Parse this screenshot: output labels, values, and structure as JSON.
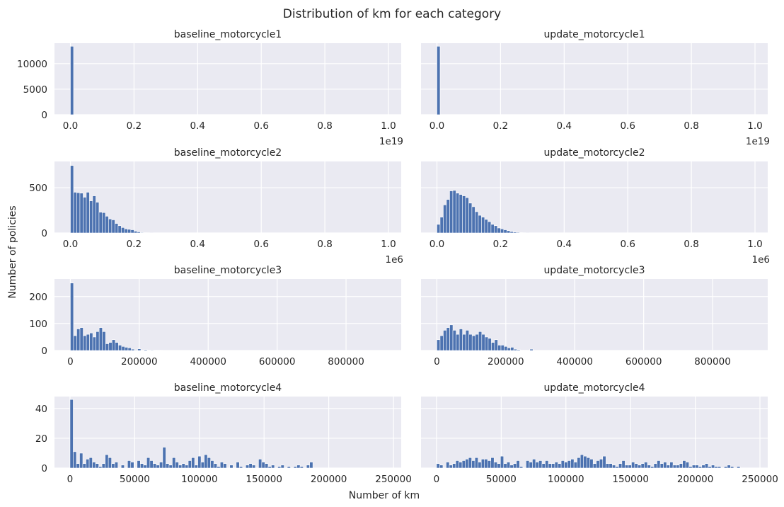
{
  "figure": {
    "title": "Distribution of km for each category",
    "xlabel": "Number of km",
    "ylabel": "Number of policies",
    "bar_color": "#4c72b0",
    "panel_bg": "#eaeaf2"
  },
  "chart_data": [
    {
      "type": "bar",
      "title": "baseline_motorcycle1",
      "xlim": [
        -0.05,
        1.04
      ],
      "xticks": [
        0,
        0.2,
        0.4,
        0.6,
        0.8,
        1.0
      ],
      "xtick_labels": [
        "0.0",
        "0.2",
        "0.4",
        "0.6",
        "0.8",
        "1.0"
      ],
      "x_offset": "1e19",
      "ylim": [
        0,
        14000
      ],
      "yticks": [
        0,
        5000,
        10000
      ],
      "ytick_labels": [
        "0",
        "5000",
        "10000"
      ],
      "bin_start": 0,
      "bin_width": 0.01,
      "values": [
        13400
      ]
    },
    {
      "type": "bar",
      "title": "update_motorcycle1",
      "xlim": [
        -0.05,
        1.04
      ],
      "xticks": [
        0,
        0.2,
        0.4,
        0.6,
        0.8,
        1.0
      ],
      "xtick_labels": [
        "0.0",
        "0.2",
        "0.4",
        "0.6",
        "0.8",
        "1.0"
      ],
      "x_offset": "1e19",
      "ylim": [
        0,
        14000
      ],
      "yticks": [
        0,
        5000,
        10000
      ],
      "ytick_labels": [],
      "bin_start": 0,
      "bin_width": 0.01,
      "values": [
        13400
      ]
    },
    {
      "type": "bar",
      "title": "baseline_motorcycle2",
      "xlim": [
        -0.05,
        1.04
      ],
      "xticks": [
        0,
        0.2,
        0.4,
        0.6,
        0.8,
        1.0
      ],
      "xtick_labels": [
        "0.0",
        "0.2",
        "0.4",
        "0.6",
        "0.8",
        "1.0"
      ],
      "x_offset": "1e6",
      "ylim": [
        0,
        790
      ],
      "yticks": [
        0,
        500
      ],
      "ytick_labels": [
        "0",
        "500"
      ],
      "bin_start": 0,
      "bin_width": 0.01,
      "values": [
        745,
        450,
        445,
        440,
        395,
        450,
        355,
        410,
        340,
        230,
        225,
        185,
        155,
        145,
        105,
        80,
        60,
        45,
        40,
        35,
        20,
        12,
        6,
        3,
        2,
        1
      ]
    },
    {
      "type": "bar",
      "title": "update_motorcycle2",
      "xlim": [
        -0.05,
        1.04
      ],
      "xticks": [
        0,
        0.2,
        0.4,
        0.6,
        0.8,
        1.0
      ],
      "xtick_labels": [
        "0.0",
        "0.2",
        "0.4",
        "0.6",
        "0.8",
        "1.0"
      ],
      "x_offset": "1e6",
      "ylim": [
        0,
        790
      ],
      "yticks": [
        0,
        500
      ],
      "ytick_labels": [],
      "bin_start": 0,
      "bin_width": 0.01,
      "values": [
        95,
        175,
        310,
        370,
        465,
        470,
        440,
        425,
        410,
        390,
        330,
        290,
        235,
        195,
        175,
        150,
        125,
        95,
        80,
        55,
        45,
        35,
        25,
        15,
        10,
        7,
        4,
        2,
        1
      ]
    },
    {
      "type": "bar",
      "title": "baseline_motorcycle3",
      "xlim": [
        -46000,
        960000
      ],
      "xticks": [
        0,
        200000,
        400000,
        600000,
        800000
      ],
      "xtick_labels": [
        "0",
        "200000",
        "400000",
        "600000",
        "800000"
      ],
      "x_offset": "",
      "ylim": [
        0,
        265
      ],
      "yticks": [
        0,
        100,
        200
      ],
      "ytick_labels": [
        "0",
        "100",
        "200"
      ],
      "bin_start": 0,
      "bin_width": 9300,
      "values": [
        250,
        55,
        80,
        85,
        55,
        60,
        65,
        50,
        70,
        85,
        70,
        25,
        30,
        40,
        30,
        20,
        15,
        12,
        10,
        5,
        2,
        6,
        1,
        3,
        1,
        2,
        1,
        1,
        1
      ]
    },
    {
      "type": "bar",
      "title": "update_motorcycle3",
      "xlim": [
        -46000,
        960000
      ],
      "xticks": [
        0,
        200000,
        400000,
        600000,
        800000
      ],
      "xtick_labels": [
        "0",
        "200000",
        "400000",
        "600000",
        "800000"
      ],
      "x_offset": "",
      "ylim": [
        0,
        265
      ],
      "yticks": [
        0,
        100,
        200
      ],
      "ytick_labels": [],
      "bin_start": 0,
      "bin_width": 9300,
      "values": [
        40,
        55,
        75,
        85,
        95,
        75,
        60,
        80,
        60,
        75,
        60,
        55,
        60,
        70,
        60,
        50,
        45,
        30,
        40,
        20,
        20,
        15,
        10,
        12,
        5,
        3,
        1,
        1,
        1,
        5
      ]
    },
    {
      "type": "bar",
      "title": "baseline_motorcycle4",
      "xlim": [
        -12000,
        256000
      ],
      "xticks": [
        0,
        50000,
        100000,
        150000,
        200000,
        250000
      ],
      "xtick_labels": [
        "0",
        "50000",
        "100000",
        "150000",
        "200000",
        "250000"
      ],
      "x_offset": "",
      "ylim": [
        0,
        48
      ],
      "yticks": [
        0,
        20,
        40
      ],
      "ytick_labels": [
        "0",
        "20",
        "40"
      ],
      "bin_start": 0,
      "bin_width": 2470,
      "values": [
        46,
        11,
        3,
        10,
        3,
        6,
        7,
        4,
        3,
        1,
        3,
        9,
        7,
        3,
        4,
        0,
        2,
        0,
        5,
        4,
        0,
        5,
        3,
        2,
        7,
        5,
        3,
        2,
        4,
        14,
        3,
        2,
        7,
        4,
        2,
        3,
        2,
        5,
        7,
        2,
        8,
        4,
        9,
        7,
        5,
        3,
        1,
        4,
        3,
        0,
        2,
        0,
        4,
        1,
        0,
        2,
        3,
        2,
        0,
        6,
        4,
        3,
        1,
        2,
        0,
        1,
        2,
        0,
        1,
        0,
        1,
        2,
        1,
        0,
        2,
        4,
        0,
        0,
        0,
        0,
        0,
        0,
        0,
        0,
        0,
        0,
        0,
        0,
        0,
        0,
        0,
        0,
        0,
        0,
        0,
        0,
        0,
        0,
        0,
        0,
        0
      ]
    },
    {
      "type": "bar",
      "title": "update_motorcycle4",
      "xlim": [
        -12000,
        256000
      ],
      "xticks": [
        0,
        50000,
        100000,
        150000,
        200000,
        250000
      ],
      "xtick_labels": [
        "0",
        "50000",
        "100000",
        "150000",
        "200000",
        "250000"
      ],
      "x_offset": "",
      "ylim": [
        0,
        48
      ],
      "yticks": [
        0,
        20,
        40
      ],
      "ytick_labels": [],
      "bin_start": 0,
      "bin_width": 2470,
      "values": [
        3,
        2,
        0,
        4,
        2,
        3,
        5,
        4,
        5,
        6,
        7,
        5,
        7,
        4,
        6,
        6,
        5,
        7,
        4,
        3,
        8,
        3,
        4,
        2,
        3,
        5,
        1,
        0,
        5,
        4,
        6,
        4,
        5,
        3,
        5,
        3,
        3,
        4,
        3,
        5,
        4,
        5,
        6,
        4,
        7,
        9,
        8,
        7,
        6,
        3,
        5,
        6,
        8,
        3,
        3,
        2,
        1,
        3,
        5,
        2,
        2,
        4,
        3,
        2,
        3,
        4,
        2,
        1,
        3,
        5,
        3,
        4,
        2,
        4,
        2,
        2,
        3,
        5,
        4,
        1,
        2,
        2,
        1,
        2,
        3,
        1,
        2,
        1,
        1,
        0,
        1,
        2,
        1,
        0,
        1,
        0,
        0,
        0,
        0,
        0,
        0
      ]
    }
  ]
}
